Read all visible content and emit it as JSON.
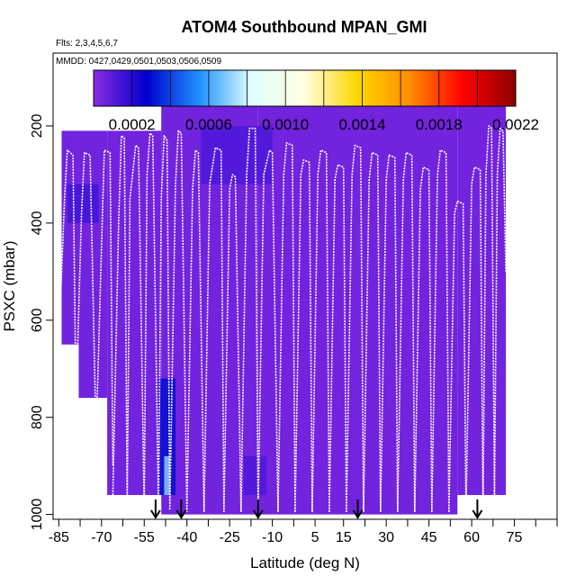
{
  "chart_data": {
    "type": "heatmap",
    "title": "ATOM4 Southbound MPAN_GMI",
    "flights_note": "Flts: 2,3,4,5,6,7",
    "dates_note": "MMDD: 0427,0429,0501,0503,0506,0509",
    "xlabel": "Latitude (deg N)",
    "ylabel": "PSXC (mbar)",
    "xlim": [
      -87,
      90
    ],
    "ylim": [
      1010,
      50
    ],
    "y_reversed": true,
    "x_ticks": [
      -85,
      -70,
      -55,
      -40,
      -25,
      -10,
      5,
      15,
      30,
      45,
      60,
      75
    ],
    "x_minor_ticks": [
      -77.5,
      -62.5,
      -47.5,
      -32.5,
      -17.5,
      -2.5,
      22.5,
      37.5,
      52.5,
      67.5,
      82.5,
      90
    ],
    "y_ticks": [
      200,
      400,
      600,
      800,
      1000
    ],
    "colorbar": {
      "tick_labels": [
        "0.0002",
        "0.0006",
        "0.0010",
        "0.0014",
        "0.0018",
        "0.0022"
      ],
      "tick_values": [
        0.0002,
        0.0006,
        0.001,
        0.0014,
        0.0018,
        0.0022
      ],
      "range": [
        0.0,
        0.0022
      ],
      "colors": [
        "#8a2be2",
        "#0000cd",
        "#1e90ff",
        "#e0ffff",
        "#ffffe0",
        "#ffd700",
        "#ff8c00",
        "#ff0000",
        "#8b0000"
      ]
    },
    "background_value": 5e-05,
    "curtain_segments": [
      {
        "x": [
          -84,
          -78
        ],
        "p": [
          210,
          650
        ]
      },
      {
        "x": [
          -78,
          -68
        ],
        "p": [
          210,
          760
        ]
      },
      {
        "x": [
          -68,
          -49
        ],
        "p": [
          210,
          960
        ]
      },
      {
        "x": [
          -49,
          -15
        ],
        "p": [
          160,
          1000
        ]
      },
      {
        "x": [
          -15,
          20
        ],
        "p": [
          160,
          1000
        ]
      },
      {
        "x": [
          20,
          55
        ],
        "p": [
          160,
          1000
        ]
      },
      {
        "x": [
          55,
          72
        ],
        "p": [
          160,
          960
        ]
      }
    ],
    "enhanced_regions": [
      {
        "x": [
          -82,
          -71
        ],
        "p": [
          320,
          400
        ],
        "value": 0.00015
      },
      {
        "x": [
          -35,
          -10
        ],
        "p": [
          200,
          320
        ],
        "value": 0.00012
      },
      {
        "x": [
          -50,
          -44
        ],
        "p": [
          720,
          960
        ],
        "value": 0.0003
      },
      {
        "x": [
          -48,
          -46
        ],
        "p": [
          880,
          960
        ],
        "value": 0.0007
      },
      {
        "x": [
          -20,
          -12
        ],
        "p": [
          880,
          960
        ],
        "value": 0.00012
      }
    ],
    "flight_profiles": [
      {
        "x": [
          -85,
          -83,
          -82,
          -80,
          -79
        ],
        "p": [
          650,
          350,
          250,
          260,
          750
        ]
      },
      {
        "x": [
          -79,
          -77,
          -76,
          -74,
          -72
        ],
        "p": [
          780,
          380,
          255,
          260,
          820
        ]
      },
      {
        "x": [
          -72,
          -70,
          -69,
          -67,
          -66
        ],
        "p": [
          860,
          450,
          250,
          255,
          900
        ]
      },
      {
        "x": [
          -66,
          -64,
          -63,
          -62,
          -61
        ],
        "p": [
          960,
          400,
          220,
          225,
          960
        ]
      },
      {
        "x": [
          -61,
          -60,
          -58,
          -57,
          -55
        ],
        "p": [
          980,
          350,
          240,
          245,
          990
        ]
      },
      {
        "x": [
          -55,
          -54,
          -53,
          -52,
          -50
        ],
        "p": [
          990,
          300,
          215,
          220,
          990
        ]
      },
      {
        "x": [
          -50,
          -49,
          -48,
          -47,
          -46
        ],
        "p": [
          1000,
          350,
          220,
          230,
          990
        ]
      },
      {
        "x": [
          -46,
          -44,
          -43,
          -42,
          -40
        ],
        "p": [
          990,
          320,
          210,
          215,
          995
        ]
      },
      {
        "x": [
          -40,
          -38,
          -37,
          -36,
          -34
        ],
        "p": [
          990,
          330,
          250,
          255,
          995
        ]
      },
      {
        "x": [
          -34,
          -32,
          -30,
          -28,
          -27
        ],
        "p": [
          995,
          320,
          245,
          250,
          995
        ]
      },
      {
        "x": [
          -27,
          -25,
          -24,
          -23,
          -21
        ],
        "p": [
          995,
          330,
          300,
          305,
          995
        ]
      },
      {
        "x": [
          -21,
          -19,
          -18,
          -16,
          -15
        ],
        "p": [
          995,
          300,
          205,
          205,
          995
        ]
      },
      {
        "x": [
          -15,
          -13,
          -11,
          -10,
          -8
        ],
        "p": [
          995,
          300,
          250,
          255,
          995
        ]
      },
      {
        "x": [
          -8,
          -6,
          -5,
          -3,
          -2
        ],
        "p": [
          995,
          300,
          235,
          240,
          995
        ]
      },
      {
        "x": [
          -2,
          0,
          1,
          3,
          4
        ],
        "p": [
          995,
          300,
          270,
          275,
          995
        ]
      },
      {
        "x": [
          4,
          6,
          7,
          9,
          10
        ],
        "p": [
          995,
          300,
          250,
          255,
          995
        ]
      },
      {
        "x": [
          10,
          12,
          13,
          15,
          16
        ],
        "p": [
          995,
          310,
          280,
          285,
          995
        ]
      },
      {
        "x": [
          16,
          18,
          19,
          21,
          22
        ],
        "p": [
          995,
          300,
          240,
          245,
          995
        ]
      },
      {
        "x": [
          22,
          24,
          25,
          27,
          28
        ],
        "p": [
          995,
          310,
          255,
          260,
          995
        ]
      },
      {
        "x": [
          28,
          30,
          31,
          33,
          34
        ],
        "p": [
          995,
          310,
          260,
          265,
          995
        ]
      },
      {
        "x": [
          34,
          36,
          37,
          39,
          40
        ],
        "p": [
          995,
          310,
          255,
          260,
          995
        ]
      },
      {
        "x": [
          40,
          42,
          43,
          45,
          46
        ],
        "p": [
          995,
          330,
          285,
          290,
          995
        ]
      },
      {
        "x": [
          46,
          48,
          49,
          51,
          52
        ],
        "p": [
          995,
          300,
          250,
          255,
          995
        ]
      },
      {
        "x": [
          52,
          54,
          55,
          57,
          58
        ],
        "p": [
          995,
          380,
          355,
          360,
          995
        ]
      },
      {
        "x": [
          58,
          60,
          61,
          63,
          64
        ],
        "p": [
          995,
          320,
          285,
          290,
          995
        ]
      },
      {
        "x": [
          64,
          65,
          66,
          67,
          68
        ],
        "p": [
          990,
          300,
          200,
          205,
          960
        ]
      },
      {
        "x": [
          68,
          69,
          70,
          71,
          72
        ],
        "p": [
          960,
          300,
          205,
          210,
          500
        ]
      }
    ],
    "arrow_latitudes": [
      -51,
      -42,
      -15,
      20,
      62
    ],
    "legend_position": "top",
    "grid": false
  }
}
